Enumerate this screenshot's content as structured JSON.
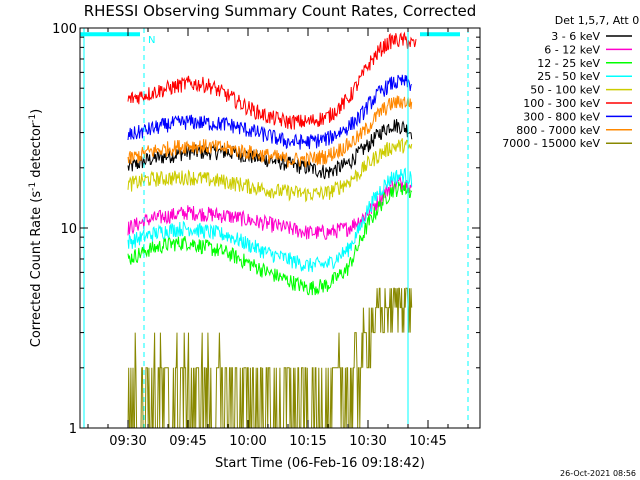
{
  "chart_data": {
    "type": "line",
    "title": "RHESSI Observing Summary Count Rates, Corrected",
    "xlabel": "Start Time (06-Feb-16 09:18:42)",
    "ylabel_parts": [
      "Corrected Count Rate (s",
      "-1",
      " detector",
      "-1",
      ")"
    ],
    "y_scale": "log",
    "ylim": [
      1,
      100
    ],
    "xlim": [
      "09:18",
      "10:58"
    ],
    "y_ticks": [
      "1",
      "10",
      "100"
    ],
    "x_ticks": [
      "09:30",
      "09:45",
      "10:00",
      "10:15",
      "10:30",
      "10:45"
    ],
    "legend_title": "Det 1,5,7, Att 0",
    "legend_position": "right",
    "timestamp": "26-Oct-2021 08:56",
    "night_marker": "N",
    "series": [
      {
        "name": "3 - 6 keV",
        "color": "#000000",
        "times": [
          "09:30",
          "09:35",
          "09:45",
          "09:55",
          "10:05",
          "10:15",
          "10:20",
          "10:25",
          "10:28",
          "10:30",
          "10:33",
          "10:36",
          "10:39",
          "10:41"
        ],
        "values": [
          20,
          22,
          24,
          24,
          22,
          20,
          19,
          21,
          24,
          26,
          30,
          33,
          32,
          30
        ]
      },
      {
        "name": "6 - 12 keV",
        "color": "#ff00cc",
        "times": [
          "09:30",
          "09:35",
          "09:40",
          "09:45",
          "09:55",
          "10:05",
          "10:15",
          "10:20",
          "10:25",
          "10:28",
          "10:30",
          "10:33",
          "10:36",
          "10:39",
          "10:41"
        ],
        "values": [
          10,
          11,
          11.5,
          12,
          11.5,
          10.5,
          9.5,
          9.5,
          10,
          11,
          12,
          14,
          16.5,
          17,
          16
        ]
      },
      {
        "name": "12 - 25 keV",
        "color": "#00ff00",
        "times": [
          "09:30",
          "09:35",
          "09:40",
          "09:45",
          "09:55",
          "10:05",
          "10:15",
          "10:20",
          "10:25",
          "10:28",
          "10:30",
          "10:33",
          "10:36",
          "10:39",
          "10:41"
        ],
        "values": [
          7,
          7.8,
          8.3,
          8.5,
          7.5,
          6,
          5,
          5.2,
          6.3,
          8.5,
          10.5,
          13,
          15.5,
          16,
          15
        ]
      },
      {
        "name": "25 - 50 keV",
        "color": "#00ffff",
        "times": [
          "09:30",
          "09:35",
          "09:40",
          "09:45",
          "09:55",
          "10:05",
          "10:15",
          "10:20",
          "10:25",
          "10:28",
          "10:30",
          "10:33",
          "10:36",
          "10:39",
          "10:41"
        ],
        "values": [
          8.5,
          9.2,
          9.8,
          10,
          9.2,
          7.5,
          6.5,
          6.6,
          7.8,
          10,
          12.5,
          15.5,
          18,
          18.5,
          17.5
        ]
      },
      {
        "name": "50 - 100 keV",
        "color": "#cccc00",
        "times": [
          "09:30",
          "09:35",
          "09:45",
          "09:55",
          "10:05",
          "10:15",
          "10:20",
          "10:25",
          "10:28",
          "10:30",
          "10:33",
          "10:36",
          "10:39",
          "10:41"
        ],
        "values": [
          16.5,
          17.5,
          18,
          17,
          15.5,
          14.8,
          15,
          17,
          19,
          21,
          23.5,
          25.5,
          26,
          25
        ]
      },
      {
        "name": "100 - 300 keV",
        "color": "#ff0000",
        "times": [
          "09:30",
          "09:35",
          "09:40",
          "09:45",
          "09:50",
          "09:55",
          "10:00",
          "10:05",
          "10:10",
          "10:15",
          "10:20",
          "10:25",
          "10:28",
          "10:30",
          "10:33",
          "10:36",
          "10:39",
          "10:42"
        ],
        "values": [
          44,
          47,
          50,
          53,
          52,
          46,
          40,
          36,
          34,
          34,
          36,
          44,
          55,
          65,
          78,
          87,
          87,
          82
        ]
      },
      {
        "name": "300 - 800 keV",
        "color": "#0000ff",
        "times": [
          "09:30",
          "09:35",
          "09:40",
          "09:45",
          "09:55",
          "10:05",
          "10:10",
          "10:15",
          "10:20",
          "10:25",
          "10:28",
          "10:30",
          "10:33",
          "10:36",
          "10:39",
          "10:41"
        ],
        "values": [
          29,
          31,
          33,
          34,
          33,
          29,
          27,
          27,
          28,
          32,
          36,
          41,
          48,
          53,
          54,
          52
        ]
      },
      {
        "name": "800 - 7000 keV",
        "color": "#ff8800",
        "times": [
          "09:30",
          "09:35",
          "09:40",
          "09:45",
          "09:55",
          "10:05",
          "10:10",
          "10:15",
          "10:20",
          "10:25",
          "10:28",
          "10:30",
          "10:33",
          "10:36",
          "10:39",
          "10:41"
        ],
        "values": [
          22,
          24,
          25,
          26,
          25,
          23,
          22,
          22,
          23,
          26,
          29,
          32,
          38,
          42,
          43,
          42
        ]
      },
      {
        "name": "7000 - 15000 keV",
        "color": "#888800",
        "times": [
          "09:30",
          "09:40",
          "09:50",
          "09:55",
          "10:05",
          "10:15",
          "10:20",
          "10:25",
          "10:28",
          "10:30",
          "10:33",
          "10:36",
          "10:39",
          "10:41"
        ],
        "values": [
          1.5,
          1.6,
          1.6,
          1.4,
          1.3,
          1.3,
          1.35,
          1.6,
          2.2,
          3,
          3.8,
          4.2,
          4.5,
          4.2
        ]
      }
    ],
    "attenuator_bars": [
      {
        "from": "09:18",
        "to": "09:33",
        "value": 93,
        "color": "#00ffff"
      },
      {
        "from": "10:43",
        "to": "10:53",
        "value": 93,
        "color": "#00ffff"
      }
    ],
    "vertical_lines": [
      {
        "time": "09:19",
        "style": "solid",
        "color": "#00ffff"
      },
      {
        "time": "09:34",
        "style": "dashed",
        "color": "#00ffff"
      },
      {
        "time": "10:40",
        "style": "solid",
        "color": "#00ffff"
      },
      {
        "time": "10:55",
        "style": "dashed",
        "color": "#00ffff"
      }
    ]
  }
}
